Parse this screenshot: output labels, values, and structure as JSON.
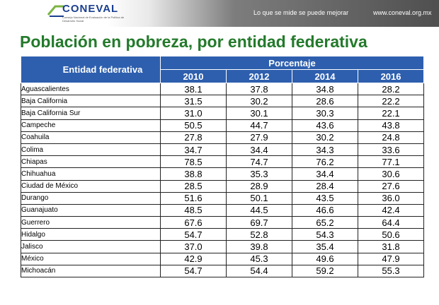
{
  "header": {
    "logo_text": "CONEVAL",
    "logo_subtitle": "Consejo Nacional de Evaluación de la Política de Desarrollo Social",
    "tagline": "Lo que se mide se puede mejorar",
    "website": "www.coneval.org.mx",
    "banner_color": "#4f4f4f"
  },
  "title": "Población en pobreza, por entidad federativa",
  "title_color": "#237a2b",
  "table": {
    "header_color": "#2e5fae",
    "entity_header": "Entidad federativa",
    "group_header": "Porcentaje",
    "years": [
      "2010",
      "2012",
      "2014",
      "2016"
    ],
    "rows": [
      {
        "name": "Aguascalientes",
        "values": [
          "38.1",
          "37.8",
          "34.8",
          "28.2"
        ]
      },
      {
        "name": "Baja California",
        "values": [
          "31.5",
          "30.2",
          "28.6",
          "22.2"
        ]
      },
      {
        "name": "Baja California Sur",
        "values": [
          "31.0",
          "30.1",
          "30.3",
          "22.1"
        ]
      },
      {
        "name": "Campeche",
        "values": [
          "50.5",
          "44.7",
          "43.6",
          "43.8"
        ]
      },
      {
        "name": "Coahuila",
        "values": [
          "27.8",
          "27.9",
          "30.2",
          "24.8"
        ]
      },
      {
        "name": "Colima",
        "values": [
          "34.7",
          "34.4",
          "34.3",
          "33.6"
        ]
      },
      {
        "name": "Chiapas",
        "values": [
          "78.5",
          "74.7",
          "76.2",
          "77.1"
        ]
      },
      {
        "name": "Chihuahua",
        "values": [
          "38.8",
          "35.3",
          "34.4",
          "30.6"
        ]
      },
      {
        "name": "Ciudad de México",
        "values": [
          "28.5",
          "28.9",
          "28.4",
          "27.6"
        ]
      },
      {
        "name": "Durango",
        "values": [
          "51.6",
          "50.1",
          "43.5",
          "36.0"
        ]
      },
      {
        "name": "Guanajuato",
        "values": [
          "48.5",
          "44.5",
          "46.6",
          "42.4"
        ]
      },
      {
        "name": "Guerrero",
        "values": [
          "67.6",
          "69.7",
          "65.2",
          "64.4"
        ]
      },
      {
        "name": "Hidalgo",
        "values": [
          "54.7",
          "52.8",
          "54.3",
          "50.6"
        ]
      },
      {
        "name": "Jalisco",
        "values": [
          "37.0",
          "39.8",
          "35.4",
          "31.8"
        ]
      },
      {
        "name": "México",
        "values": [
          "42.9",
          "45.3",
          "49.6",
          "47.9"
        ]
      },
      {
        "name": "Michoacán",
        "values": [
          "54.7",
          "54.4",
          "59.2",
          "55.3"
        ]
      }
    ]
  }
}
